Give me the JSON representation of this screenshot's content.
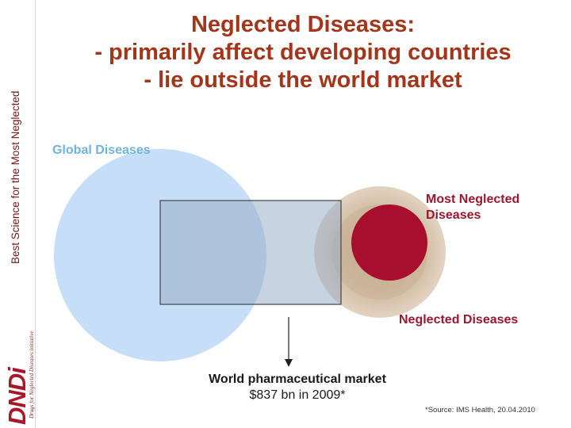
{
  "sidebar": {
    "tagline": "Best Science for the Most Neglected",
    "logo": "DNDi",
    "logo_sub": "Drugs for Neglected Diseases initiative"
  },
  "title": {
    "line1": "Neglected Diseases:",
    "line2": "- primarily affect developing countries",
    "line3": "- lie outside the world market"
  },
  "diagram": {
    "global_label": "Global Diseases",
    "most_neglected_label": "Most Neglected Diseases",
    "neglected_label": "Neglected Diseases",
    "market_line1": "World pharmaceutical market",
    "market_line2": "$837 bn in 2009*",
    "colors": {
      "global": "#c6def7",
      "neglected": "#d7c1a7",
      "most_neglected": "#a80f2f",
      "market_fill": "#9aaec8",
      "title": "#a3351a"
    }
  },
  "footnote": "*Source: IMS Health, 20.04.2010"
}
